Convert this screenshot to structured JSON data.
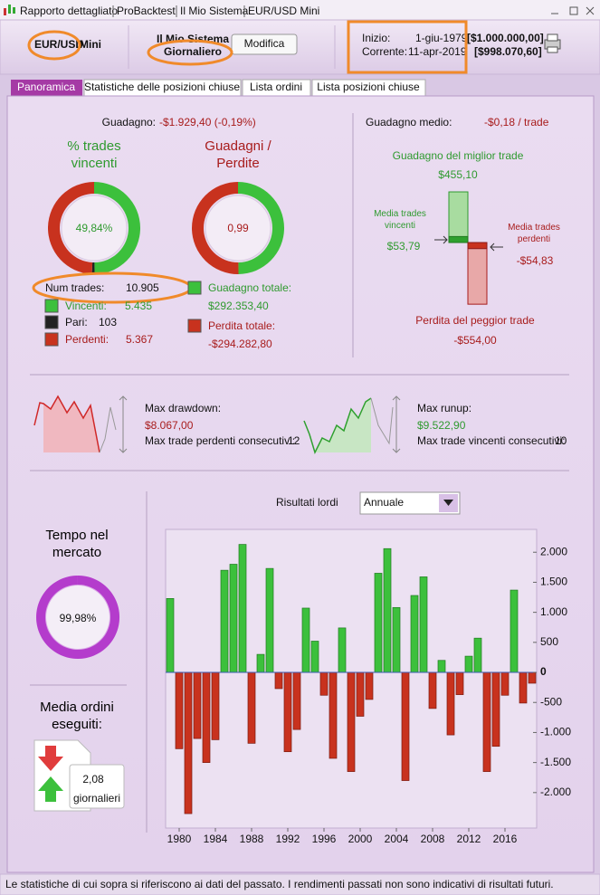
{
  "window": {
    "tabs": [
      "Rapporto dettagliato",
      "ProBacktest",
      "Il Mio Sistema",
      "EUR/USD Mini"
    ]
  },
  "header": {
    "instrument": "EUR/USD",
    "contract": "Mini",
    "system": "Il Mio Sistema",
    "timeframe": "Giornaliero",
    "edit_button": "Modifica",
    "start_label": "Inizio:",
    "start_date": "1-giu-1979",
    "start_capital": "[$1.000.000,00]",
    "current_label": "Corrente:",
    "current_date": "11-apr-2019",
    "current_capital": "[$998.070,60]"
  },
  "tabs": [
    "Panoramica",
    "Statistiche delle posizioni chiuse",
    "Lista ordini",
    "Lista posizioni chiuse"
  ],
  "overview": {
    "gain_label": "Guadagno:",
    "gain": "-$1.929,40 (-0,19%)",
    "win_rate_title": "% trades vincenti",
    "win_rate": "49,84%",
    "ratio_title": "Guadagni / Perdite",
    "ratio": "0,99",
    "num_trades_label": "Num trades:",
    "num_trades": "10.905",
    "wins_label": "Vincenti:",
    "wins": {
      "value": 5435,
      "label": "5.435"
    },
    "even_label": "Pari:",
    "even": {
      "value": 103,
      "label": "103"
    },
    "losses_label": "Perdenti:",
    "losses": {
      "value": 5367,
      "label": "5.367"
    },
    "total_gain_label": "Guadagno totale:",
    "total_gain": {
      "value": 292353.4,
      "label": "$292.353,40"
    },
    "total_loss_label": "Perdita totale:",
    "total_loss": {
      "value": -294282.8,
      "label": "-$294.282,80"
    },
    "avg_gain_label": "Guadagno medio:",
    "avg_gain": "-$0,18 / trade",
    "best_trade_label": "Guadagno del miglior trade",
    "best_trade": {
      "value": 455.1,
      "label": "$455,10"
    },
    "avg_win_label": "Media trades vincenti",
    "avg_win": {
      "value": 53.79,
      "label": "$53,79"
    },
    "avg_loss_label": "Media trades perdenti",
    "avg_loss": {
      "value": -54.83,
      "label": "-$54,83"
    },
    "worst_trade_label": "Perdita del peggior trade",
    "worst_trade": {
      "value": -554.0,
      "label": "-$554,00"
    },
    "drawdown_label": "Max drawdown:",
    "drawdown": "$8.067,00",
    "consec_losses_label": "Max trade perdenti consecutivi:",
    "consec_losses": "12",
    "runup_label": "Max runup:",
    "runup": "$9.522,90",
    "consec_wins_label": "Max trade vincenti consecutivi:",
    "consec_wins": "10",
    "time_in_market_title": "Tempo nel mercato",
    "time_in_market": {
      "value": 99.98,
      "label": "99,98%"
    },
    "orders_title": "Media ordini eseguiti:",
    "orders": "2,08",
    "orders_unit": "giornalieri"
  },
  "chart_data": {
    "type": "bar",
    "title": "Risultati lordi",
    "period": "Annuale",
    "x": [
      1979,
      1980,
      1981,
      1982,
      1983,
      1984,
      1985,
      1986,
      1987,
      1988,
      1989,
      1990,
      1991,
      1992,
      1993,
      1994,
      1995,
      1996,
      1997,
      1998,
      1999,
      2000,
      2001,
      2002,
      2003,
      2004,
      2005,
      2006,
      2007,
      2008,
      2009,
      2010,
      2011,
      2012,
      2013,
      2014,
      2015,
      2016,
      2017,
      2018,
      2019
    ],
    "values": [
      1230,
      -1270,
      -2350,
      -1100,
      -1500,
      -1120,
      1700,
      1800,
      2130,
      -1180,
      300,
      1730,
      -270,
      -1320,
      -950,
      1070,
      520,
      -380,
      -1430,
      740,
      -1650,
      -730,
      -450,
      1650,
      2060,
      1080,
      -1800,
      1280,
      1590,
      -600,
      200,
      -1040,
      -370,
      270,
      570,
      -1650,
      -1230,
      -380,
      1370,
      -510,
      -180
    ],
    "positive_color": "#3cc03c",
    "negative_color": "#c8321e",
    "xlim": [
      1978.5,
      2019.5
    ],
    "xticks": [
      1980,
      1984,
      1988,
      1992,
      1996,
      2000,
      2004,
      2008,
      2012,
      2016
    ],
    "ylim": [
      -2590,
      2380
    ],
    "yticks": [
      {
        "value": 2000,
        "label": "2.000"
      },
      {
        "value": 1500,
        "label": "1.500"
      },
      {
        "value": 1000,
        "label": "1.000"
      },
      500,
      0,
      -500,
      {
        "value": -1000,
        "label": "-1.000"
      },
      {
        "value": -1500,
        "label": "-1.500"
      },
      {
        "value": -2000,
        "label": "-2.000"
      }
    ]
  },
  "footer": "Le statistiche di cui sopra si riferiscono ai dati del passato. I rendimenti passati non sono indicativi di risultati futuri."
}
